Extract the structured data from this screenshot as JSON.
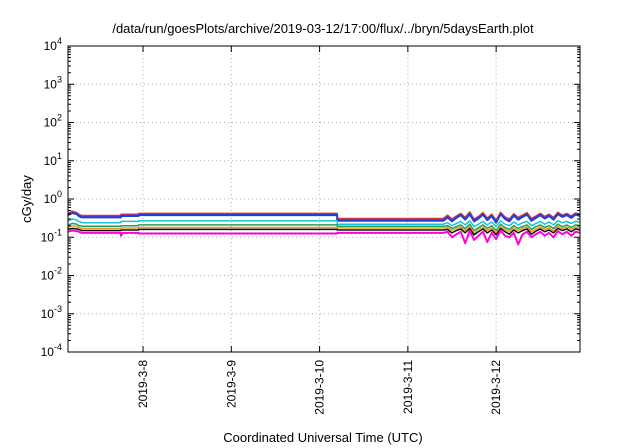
{
  "chart_data": {
    "type": "line",
    "title": "/data/run/goesPlots/archive/2019-03-12/17:00/flux/../bryn/5daysEarth.plot",
    "xlabel": "Coordinated Universal Time (UTC)",
    "ylabel": "cGy/day",
    "yscale": "log",
    "ylim": [
      0.0001,
      10000
    ],
    "xlim": [
      0,
      5.8
    ],
    "y_ticks": [
      {
        "value": 0.0001,
        "base": "10",
        "exp": "-4"
      },
      {
        "value": 0.001,
        "base": "10",
        "exp": "-3"
      },
      {
        "value": 0.01,
        "base": "10",
        "exp": "-2"
      },
      {
        "value": 0.1,
        "base": "10",
        "exp": "-1"
      },
      {
        "value": 1,
        "base": "10",
        "exp": "0"
      },
      {
        "value": 10,
        "base": "10",
        "exp": "1"
      },
      {
        "value": 100,
        "base": "10",
        "exp": "2"
      },
      {
        "value": 1000,
        "base": "10",
        "exp": "3"
      },
      {
        "value": 10000,
        "base": "10",
        "exp": "4"
      }
    ],
    "x_ticks": [
      {
        "value": 0.85,
        "label": "2019-3-8"
      },
      {
        "value": 1.85,
        "label": "2019-3-9"
      },
      {
        "value": 2.85,
        "label": "2019-3-10"
      },
      {
        "value": 3.85,
        "label": "2019-3-11"
      },
      {
        "value": 4.85,
        "label": "2019-3-12"
      }
    ],
    "grid": true,
    "legend": "none",
    "series": [
      {
        "color": "#e23a1e",
        "width": 1.5,
        "x": [
          0,
          0.05,
          0.1,
          0.12,
          0.14,
          0.16,
          0.6,
          0.6,
          0.8,
          0.8,
          3.05,
          3.05,
          4.25,
          4.3,
          4.35,
          4.4,
          4.45,
          4.5,
          4.55,
          4.6,
          4.65,
          4.7,
          4.75,
          4.8,
          4.85,
          4.9,
          4.95,
          5.0,
          5.05,
          5.1,
          5.15,
          5.2,
          5.25,
          5.3,
          5.35,
          5.4,
          5.45,
          5.5,
          5.55,
          5.6,
          5.65,
          5.7,
          5.75,
          5.8
        ],
        "y": [
          0.42,
          0.48,
          0.44,
          0.4,
          0.38,
          0.37,
          0.37,
          0.4,
          0.4,
          0.42,
          0.42,
          0.31,
          0.31,
          0.38,
          0.3,
          0.36,
          0.42,
          0.33,
          0.46,
          0.3,
          0.35,
          0.44,
          0.32,
          0.4,
          0.28,
          0.45,
          0.34,
          0.3,
          0.41,
          0.33,
          0.38,
          0.44,
          0.31,
          0.36,
          0.42,
          0.35,
          0.4,
          0.33,
          0.45,
          0.38,
          0.42,
          0.36,
          0.43,
          0.4
        ]
      },
      {
        "color": "#7b2fd6",
        "width": 1.5,
        "x": [
          0,
          0.05,
          0.1,
          0.12,
          0.14,
          0.16,
          0.6,
          0.6,
          0.8,
          0.8,
          3.05,
          3.05,
          4.25,
          4.3,
          4.35,
          4.4,
          4.45,
          4.5,
          4.55,
          4.6,
          4.65,
          4.7,
          4.75,
          4.8,
          4.85,
          4.9,
          4.95,
          5.0,
          5.05,
          5.1,
          5.15,
          5.2,
          5.25,
          5.3,
          5.35,
          5.4,
          5.45,
          5.5,
          5.55,
          5.6,
          5.65,
          5.7,
          5.75,
          5.8
        ],
        "y": [
          0.4,
          0.45,
          0.42,
          0.38,
          0.36,
          0.35,
          0.35,
          0.38,
          0.38,
          0.4,
          0.4,
          0.29,
          0.29,
          0.35,
          0.28,
          0.34,
          0.4,
          0.31,
          0.43,
          0.28,
          0.33,
          0.41,
          0.3,
          0.38,
          0.26,
          0.42,
          0.32,
          0.28,
          0.39,
          0.31,
          0.36,
          0.41,
          0.29,
          0.34,
          0.4,
          0.33,
          0.38,
          0.31,
          0.42,
          0.36,
          0.4,
          0.34,
          0.41,
          0.38
        ]
      },
      {
        "color": "#1f3fd6",
        "width": 2,
        "x": [
          0,
          0.05,
          0.1,
          0.12,
          0.14,
          0.16,
          0.6,
          0.6,
          0.8,
          0.8,
          3.05,
          3.05,
          4.25,
          4.3,
          4.35,
          4.4,
          4.45,
          4.5,
          4.55,
          4.6,
          4.65,
          4.7,
          4.75,
          4.8,
          4.85,
          4.9,
          4.95,
          5.0,
          5.05,
          5.1,
          5.15,
          5.2,
          5.25,
          5.3,
          5.35,
          5.4,
          5.45,
          5.5,
          5.55,
          5.6,
          5.65,
          5.7,
          5.75,
          5.8
        ],
        "y": [
          0.38,
          0.43,
          0.4,
          0.36,
          0.34,
          0.33,
          0.33,
          0.36,
          0.36,
          0.38,
          0.38,
          0.27,
          0.27,
          0.33,
          0.26,
          0.32,
          0.38,
          0.29,
          0.4,
          0.26,
          0.31,
          0.39,
          0.28,
          0.36,
          0.24,
          0.4,
          0.3,
          0.26,
          0.37,
          0.29,
          0.34,
          0.39,
          0.27,
          0.32,
          0.38,
          0.31,
          0.36,
          0.29,
          0.4,
          0.34,
          0.38,
          0.32,
          0.39,
          0.36
        ]
      },
      {
        "color": "#17c3d6",
        "width": 1.5,
        "x": [
          0,
          0.05,
          0.1,
          0.12,
          0.14,
          0.16,
          0.6,
          0.6,
          0.8,
          0.8,
          3.05,
          3.05,
          4.25,
          4.3,
          4.35,
          4.4,
          4.45,
          4.5,
          4.55,
          4.6,
          4.65,
          4.7,
          4.75,
          4.8,
          4.85,
          4.9,
          4.95,
          5.0,
          5.05,
          5.1,
          5.15,
          5.2,
          5.25,
          5.3,
          5.35,
          5.4,
          5.45,
          5.5,
          5.55,
          5.6,
          5.65,
          5.7,
          5.75,
          5.8
        ],
        "y": [
          0.27,
          0.3,
          0.28,
          0.26,
          0.25,
          0.24,
          0.24,
          0.26,
          0.26,
          0.27,
          0.27,
          0.22,
          0.22,
          0.24,
          0.2,
          0.23,
          0.26,
          0.21,
          0.27,
          0.19,
          0.22,
          0.26,
          0.21,
          0.25,
          0.19,
          0.27,
          0.22,
          0.2,
          0.25,
          0.21,
          0.24,
          0.26,
          0.2,
          0.23,
          0.26,
          0.22,
          0.25,
          0.21,
          0.27,
          0.24,
          0.26,
          0.23,
          0.26,
          0.25
        ]
      },
      {
        "color": "#2a9d5c",
        "width": 1.5,
        "x": [
          0,
          0.05,
          0.1,
          0.12,
          0.14,
          0.16,
          0.6,
          0.6,
          0.8,
          0.8,
          3.05,
          3.05,
          4.25,
          4.3,
          4.35,
          4.4,
          4.45,
          4.5,
          4.55,
          4.6,
          4.65,
          4.7,
          4.75,
          4.8,
          4.85,
          4.9,
          4.95,
          5.0,
          5.05,
          5.1,
          5.15,
          5.2,
          5.25,
          5.3,
          5.35,
          5.4,
          5.45,
          5.5,
          5.55,
          5.6,
          5.65,
          5.7,
          5.75,
          5.8
        ],
        "y": [
          0.21,
          0.23,
          0.22,
          0.2,
          0.2,
          0.195,
          0.195,
          0.2,
          0.2,
          0.21,
          0.21,
          0.195,
          0.195,
          0.2,
          0.17,
          0.19,
          0.21,
          0.17,
          0.22,
          0.15,
          0.18,
          0.21,
          0.17,
          0.2,
          0.15,
          0.22,
          0.18,
          0.16,
          0.2,
          0.17,
          0.19,
          0.21,
          0.16,
          0.19,
          0.21,
          0.18,
          0.2,
          0.17,
          0.22,
          0.19,
          0.21,
          0.18,
          0.21,
          0.2
        ]
      },
      {
        "color": "#e0a020",
        "width": 1.5,
        "x": [
          0,
          0.05,
          0.1,
          0.12,
          0.14,
          0.16,
          0.6,
          0.6,
          0.8,
          0.8,
          3.05,
          3.05,
          4.25,
          4.3,
          4.35,
          4.4,
          4.45,
          4.5,
          4.55,
          4.6,
          4.65,
          4.7,
          4.75,
          4.8,
          4.85,
          4.9,
          4.95,
          5.0,
          5.05,
          5.1,
          5.15,
          5.2,
          5.25,
          5.3,
          5.35,
          5.4,
          5.45,
          5.5,
          5.55,
          5.6,
          5.65,
          5.7,
          5.75,
          5.8
        ],
        "y": [
          0.18,
          0.2,
          0.19,
          0.18,
          0.175,
          0.17,
          0.17,
          0.175,
          0.175,
          0.18,
          0.18,
          0.175,
          0.175,
          0.18,
          0.15,
          0.17,
          0.185,
          0.15,
          0.19,
          0.13,
          0.16,
          0.185,
          0.15,
          0.175,
          0.13,
          0.19,
          0.16,
          0.14,
          0.175,
          0.15,
          0.17,
          0.185,
          0.14,
          0.165,
          0.185,
          0.16,
          0.175,
          0.15,
          0.19,
          0.17,
          0.185,
          0.16,
          0.185,
          0.175
        ]
      },
      {
        "color": "#111111",
        "width": 1.5,
        "x": [
          0,
          0.05,
          0.1,
          0.12,
          0.14,
          0.16,
          0.6,
          0.6,
          0.8,
          0.8,
          3.05,
          3.05,
          4.25,
          4.3,
          4.35,
          4.4,
          4.45,
          4.5,
          4.55,
          4.6,
          4.65,
          4.7,
          4.75,
          4.8,
          4.85,
          4.9,
          4.95,
          5.0,
          5.05,
          5.1,
          5.15,
          5.2,
          5.25,
          5.3,
          5.35,
          5.4,
          5.45,
          5.5,
          5.55,
          5.6,
          5.65,
          5.7,
          5.75,
          5.8
        ],
        "y": [
          0.16,
          0.17,
          0.165,
          0.16,
          0.155,
          0.15,
          0.15,
          0.155,
          0.155,
          0.16,
          0.16,
          0.155,
          0.155,
          0.16,
          0.13,
          0.15,
          0.165,
          0.13,
          0.17,
          0.115,
          0.14,
          0.165,
          0.13,
          0.155,
          0.115,
          0.17,
          0.14,
          0.12,
          0.155,
          0.13,
          0.15,
          0.165,
          0.12,
          0.145,
          0.165,
          0.14,
          0.155,
          0.13,
          0.17,
          0.15,
          0.165,
          0.14,
          0.165,
          0.155
        ]
      },
      {
        "color": "#ff00d8",
        "width": 2,
        "x": [
          0,
          0.05,
          0.1,
          0.12,
          0.14,
          0.16,
          0.6,
          0.6,
          0.62,
          0.64,
          0.8,
          0.8,
          3.05,
          3.05,
          4.25,
          4.3,
          4.35,
          4.4,
          4.45,
          4.5,
          4.55,
          4.6,
          4.65,
          4.7,
          4.75,
          4.8,
          4.85,
          4.9,
          4.95,
          5.0,
          5.05,
          5.1,
          5.15,
          5.2,
          5.25,
          5.3,
          5.35,
          5.4,
          5.45,
          5.5,
          5.55,
          5.6,
          5.65,
          5.7,
          5.75,
          5.8
        ],
        "y": [
          0.14,
          0.15,
          0.145,
          0.14,
          0.135,
          0.13,
          0.13,
          0.11,
          0.13,
          0.13,
          0.13,
          0.125,
          0.125,
          0.13,
          0.13,
          0.14,
          0.1,
          0.12,
          0.14,
          0.07,
          0.15,
          0.085,
          0.11,
          0.14,
          0.075,
          0.13,
          0.09,
          0.15,
          0.11,
          0.1,
          0.13,
          0.065,
          0.12,
          0.14,
          0.1,
          0.12,
          0.14,
          0.11,
          0.13,
          0.1,
          0.145,
          0.12,
          0.14,
          0.11,
          0.14,
          0.13
        ]
      }
    ]
  }
}
